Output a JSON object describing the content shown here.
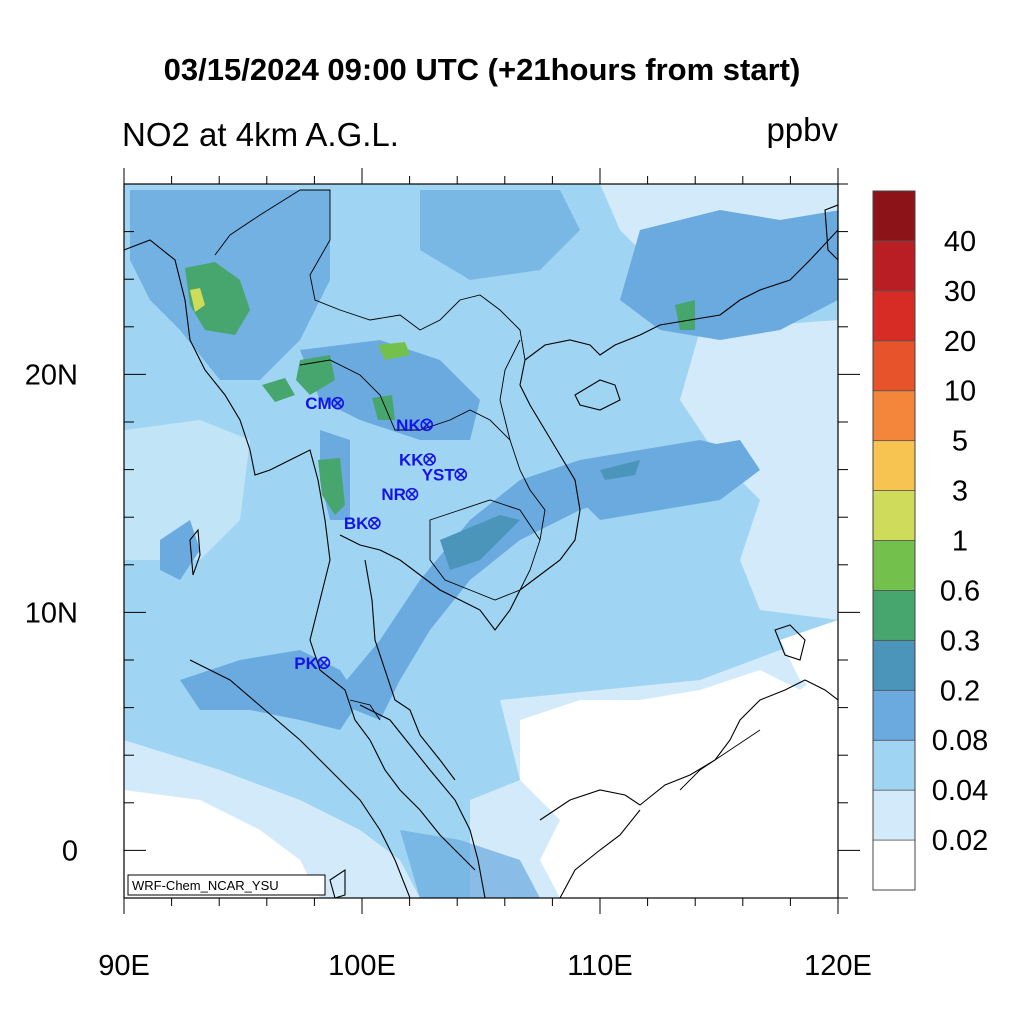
{
  "title": "03/15/2024 09:00 UTC (+21hours from start)",
  "subtitle_left": "NO2 at 4km A.G.L.",
  "subtitle_right": "ppbv",
  "credit": "WRF-Chem_NCAR_YSU",
  "map_extent": {
    "lon_min": 90,
    "lon_max": 120,
    "lat_min": -2,
    "lat_max": 28
  },
  "x_ticks": [
    {
      "lon": 90,
      "label": "90E"
    },
    {
      "lon": 100,
      "label": "100E"
    },
    {
      "lon": 110,
      "label": "110E"
    },
    {
      "lon": 120,
      "label": "120E"
    }
  ],
  "y_ticks": [
    {
      "lat": 0,
      "label": "0"
    },
    {
      "lat": 10,
      "label": "10N"
    },
    {
      "lat": 20,
      "label": "20N"
    }
  ],
  "colorbar": {
    "levels": [
      "0.02",
      "0.04",
      "0.08",
      "0.2",
      "0.3",
      "0.6",
      "1",
      "3",
      "5",
      "10",
      "20",
      "30",
      "40"
    ],
    "colors": [
      "#ffffff",
      "#d2eaf9",
      "#9fd5f2",
      "#6aaadf",
      "#4a95b9",
      "#46a66e",
      "#74c04c",
      "#cfdc5b",
      "#f8c451",
      "#f3863a",
      "#e7542c",
      "#d72c26",
      "#b91e24",
      "#8c1419"
    ]
  },
  "sites": [
    {
      "name": "CM",
      "lon": 98.98,
      "lat": 18.79
    },
    {
      "name": "NK",
      "lon": 102.72,
      "lat": 17.88
    },
    {
      "name": "KK",
      "lon": 102.84,
      "lat": 16.43
    },
    {
      "name": "YST",
      "lon": 104.15,
      "lat": 15.79
    },
    {
      "name": "NR",
      "lon": 102.1,
      "lat": 14.97
    },
    {
      "name": "BK",
      "lon": 100.52,
      "lat": 13.75
    },
    {
      "name": "PK",
      "lon": 98.4,
      "lat": 7.88
    }
  ]
}
